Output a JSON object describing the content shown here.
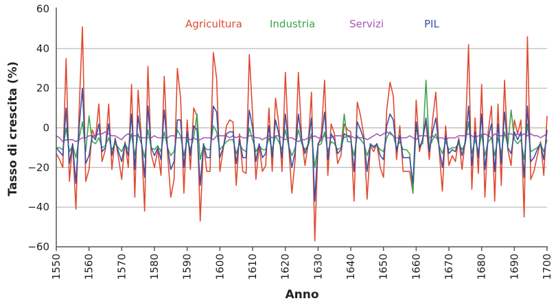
{
  "chart_data": {
    "type": "line",
    "title": "",
    "xlabel": "Anno",
    "ylabel": "Tasso di crescita (%)",
    "xlim": [
      1550,
      1700
    ],
    "ylim": [
      -60,
      60
    ],
    "xticks": [
      1550,
      1560,
      1570,
      1580,
      1590,
      1600,
      1610,
      1620,
      1630,
      1640,
      1650,
      1660,
      1670,
      1680,
      1690,
      1700
    ],
    "yticks": [
      -60,
      -40,
      -20,
      0,
      20,
      40,
      60
    ],
    "ytick_labels": [
      "−60",
      "−40",
      "−20",
      "0",
      "20",
      "40",
      "60"
    ],
    "grid": "horizontal",
    "legend_placement": "top",
    "x_start": 1550,
    "x_step": 1,
    "series": [
      {
        "name": "Agricultura",
        "color": "#e0492f",
        "values": [
          -13,
          -16,
          -20,
          35,
          -27,
          -8,
          -41,
          10,
          51,
          -27,
          -21,
          -1,
          -5,
          12,
          -17,
          -11,
          12,
          -21,
          -5,
          -15,
          -26,
          -7,
          -20,
          22,
          -35,
          19,
          -5,
          -42,
          31,
          -13,
          -20,
          -11,
          -24,
          26,
          -13,
          -35,
          -26,
          30,
          15,
          -33,
          4,
          -21,
          10,
          6,
          -47,
          -8,
          -22,
          -22,
          38,
          25,
          -22,
          -11,
          1,
          4,
          3,
          -29,
          -3,
          -22,
          -23,
          37,
          7,
          -26,
          -9,
          -22,
          -19,
          10,
          -22,
          15,
          2,
          -22,
          28,
          -8,
          -33,
          -16,
          28,
          -5,
          -19,
          -8,
          18,
          -57,
          -9,
          -3,
          24,
          -24,
          2,
          -3,
          -18,
          -14,
          2,
          -1,
          -2,
          -37,
          13,
          6,
          -4,
          -36,
          -9,
          -12,
          -8,
          -20,
          -25,
          9,
          23,
          16,
          -16,
          1,
          -22,
          -22,
          -22,
          -33,
          14,
          -12,
          -5,
          3,
          -16,
          4,
          18,
          -11,
          -32,
          1,
          -19,
          -14,
          -17,
          -5,
          -21,
          -6,
          42,
          -31,
          5,
          -23,
          22,
          -35,
          -2,
          11,
          -37,
          12,
          -29,
          24,
          -11,
          -19,
          4,
          -3,
          4,
          -45,
          46,
          -26,
          -22,
          -14,
          -7,
          -24,
          6
        ]
      },
      {
        "name": "Industria",
        "color": "#3ea34c",
        "values": [
          -10,
          -10,
          -11,
          0,
          -12,
          -9,
          -15,
          -5,
          3,
          -12,
          6,
          -7,
          -8,
          -5,
          -10,
          -9,
          -5,
          -11,
          -8,
          -10,
          -12,
          -8,
          -11,
          -3,
          -14,
          -3,
          -8,
          -15,
          -1,
          -10,
          -11,
          -9,
          -12,
          -2,
          -10,
          -14,
          -12,
          -1,
          -4,
          -14,
          -6,
          -11,
          -5,
          7,
          -16,
          -9,
          -11,
          -11,
          1,
          -2,
          -11,
          -9,
          -7,
          -6,
          -6,
          -13,
          -8,
          -11,
          -12,
          0,
          -6,
          -12,
          -9,
          -11,
          -11,
          -5,
          -11,
          -4,
          -7,
          -11,
          -1,
          -9,
          -14,
          -10,
          -1,
          -8,
          -11,
          -9,
          -3,
          -20,
          -9,
          -8,
          -2,
          -12,
          -7,
          -8,
          -11,
          -10,
          7,
          -7,
          -7,
          -14,
          -4,
          -6,
          -8,
          -14,
          -9,
          -9,
          -9,
          -11,
          -12,
          -5,
          -2,
          -4,
          -10,
          -7,
          -11,
          -11,
          -13,
          -33,
          1,
          -9,
          -8,
          24,
          -10,
          -6,
          -3,
          -9,
          -13,
          -7,
          -11,
          -10,
          -10,
          -8,
          -11,
          -8,
          3,
          -13,
          -6,
          -12,
          -3,
          -14,
          -7,
          -5,
          -14,
          -5,
          -13,
          -2,
          -9,
          9,
          -6,
          -8,
          -6,
          -16,
          2,
          -12,
          -11,
          -10,
          -8,
          -12,
          -6
        ]
      },
      {
        "name": "Servizi",
        "color": "#a657b3",
        "values": [
          -4,
          -5,
          -7,
          -6,
          -6,
          -6,
          -7,
          -6,
          -5,
          -5,
          -4,
          -4,
          -4,
          -3,
          -3,
          -2,
          -3,
          -4,
          -4,
          -5,
          -6,
          -4,
          -3,
          -4,
          -4,
          -4,
          -5,
          -5,
          -5,
          -5,
          -4,
          -5,
          -5,
          -5,
          -5,
          -4,
          -4,
          -5,
          -5,
          -5,
          -5,
          -6,
          -5,
          -6,
          -6,
          -5,
          -5,
          -5,
          -6,
          -4,
          -4,
          -4,
          -4,
          -5,
          -4,
          -5,
          -4,
          -5,
          -5,
          -4,
          -4,
          -5,
          -5,
          -6,
          -5,
          -4,
          -5,
          -4,
          -4,
          -5,
          -6,
          -5,
          -5,
          -6,
          -7,
          -6,
          -6,
          -5,
          -5,
          -4,
          -5,
          -5,
          -4,
          -5,
          -5,
          -4,
          -4,
          -4,
          -5,
          -4,
          -4,
          -5,
          -5,
          -5,
          -5,
          -6,
          -5,
          -4,
          -3,
          -4,
          -3,
          -2,
          -3,
          -4,
          -5,
          -5,
          -5,
          -5,
          -4,
          -5,
          -6,
          -4,
          -4,
          -4,
          -5,
          -4,
          -5,
          -5,
          -5,
          -6,
          -5,
          -5,
          -5,
          -4,
          -4,
          -4,
          -3,
          -4,
          -5,
          -4,
          -4,
          -3,
          -4,
          -5,
          -3,
          -4,
          -4,
          -4,
          -3,
          -3,
          -4,
          -3,
          -4,
          -3,
          -4,
          -3,
          -4,
          -4,
          -5,
          -4,
          -3
        ]
      },
      {
        "name": "PIL",
        "color": "#3b4ea3",
        "values": [
          -10,
          -12,
          -14,
          10,
          -18,
          -8,
          -28,
          1,
          20,
          -18,
          -14,
          -4,
          -6,
          2,
          -12,
          -10,
          2,
          -14,
          -6,
          -12,
          -17,
          -8,
          -14,
          7,
          -21,
          6,
          -6,
          -25,
          11,
          -10,
          -14,
          -10,
          -16,
          9,
          -10,
          -21,
          -17,
          4,
          4,
          -20,
          -2,
          -14,
          1,
          -1,
          -29,
          -8,
          -15,
          -15,
          11,
          8,
          -15,
          -10,
          -3,
          -2,
          -2,
          -18,
          -6,
          -15,
          -15,
          9,
          0,
          -17,
          -8,
          -15,
          -13,
          1,
          -15,
          4,
          -3,
          -15,
          7,
          -8,
          -20,
          -12,
          7,
          -6,
          -13,
          -8,
          5,
          -37,
          -8,
          -6,
          8,
          -16,
          -3,
          -6,
          -13,
          -11,
          -3,
          -4,
          -5,
          -22,
          3,
          -1,
          -6,
          -22,
          -8,
          -10,
          -8,
          -14,
          -16,
          1,
          7,
          4,
          -12,
          -4,
          -15,
          -15,
          -15,
          -28,
          3,
          -10,
          -6,
          5,
          -12,
          -2,
          5,
          -10,
          -20,
          -4,
          -13,
          -11,
          -12,
          -6,
          -14,
          -7,
          11,
          -19,
          -2,
          -15,
          7,
          -21,
          -5,
          2,
          -22,
          2,
          -18,
          8,
          -10,
          -13,
          -2,
          -6,
          -2,
          -25,
          11,
          -17,
          -15,
          -11,
          -8,
          -16,
          -1
        ]
      }
    ]
  }
}
